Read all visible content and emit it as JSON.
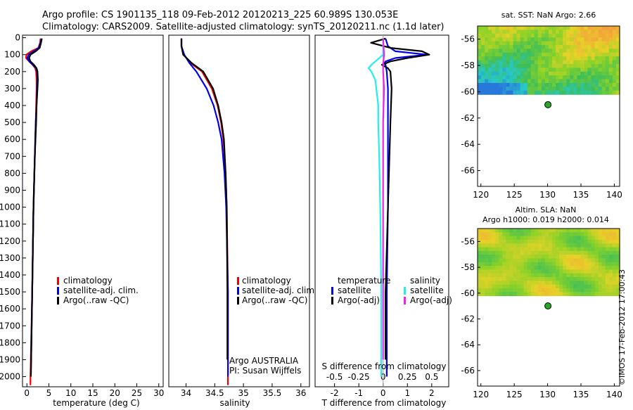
{
  "header": {
    "line1": "Argo profile: CS 1901135_118 09-Feb-2012 20120213_225 60.989S 130.053E",
    "line2": "Climatology: CARS2009. Satellite-adjusted climatology: synTS_20120211.nc (1.1d later)"
  },
  "credit": "©IMOS 17-Feb-2012 17:00:43",
  "colors": {
    "climatology": "#ee0000",
    "satellite": "#0000ee",
    "argo": "#000000",
    "sat_salinity": "#22eeee",
    "argo_salinity": "#ee22ee",
    "float_marker": "#22aa22"
  },
  "chart_data": [
    {
      "id": "temperature",
      "type": "line",
      "xlabel": "temperature (deg C)",
      "ylabel": "",
      "xlim": [
        -1,
        31
      ],
      "ylim": [
        2060,
        -15
      ],
      "xticks": [
        "0",
        "5",
        "10",
        "15",
        "20",
        "25",
        "30"
      ],
      "yticks": [
        "0",
        "100",
        "200",
        "300",
        "400",
        "500",
        "600",
        "700",
        "800",
        "900",
        "1000",
        "1100",
        "1200",
        "1300",
        "1400",
        "1500",
        "1600",
        "1700",
        "1800",
        "1900",
        "2000"
      ],
      "legend": [
        "climatology",
        "satellite-adj. clim.",
        "Argo(..raw -QC)"
      ],
      "series": [
        {
          "name": "climatology",
          "depth": [
            5,
            30,
            60,
            80,
            100,
            120,
            140,
            160,
            180,
            200,
            250,
            300,
            400,
            500,
            700,
            1000,
            1500,
            2000,
            2050
          ],
          "values": [
            3.1,
            3.0,
            2.6,
            1.0,
            -0.1,
            -0.2,
            0.5,
            1.3,
            1.9,
            2.1,
            2.2,
            2.2,
            2.1,
            2.0,
            1.8,
            1.5,
            1.2,
            0.8,
            0.8
          ]
        },
        {
          "name": "satellite-adj. clim.",
          "depth": [
            5,
            30,
            60,
            80,
            100,
            120,
            140,
            160,
            180,
            200,
            250,
            300,
            400,
            500,
            700,
            1000,
            1500,
            2000
          ],
          "values": [
            3.3,
            3.1,
            2.7,
            1.6,
            0.4,
            0.1,
            0.5,
            1.4,
            2.1,
            2.3,
            2.4,
            2.3,
            2.2,
            2.0,
            1.8,
            1.5,
            1.2,
            0.9
          ]
        },
        {
          "name": "Argo(..raw -QC)",
          "depth": [
            5,
            30,
            60,
            80,
            100,
            120,
            140,
            160,
            180,
            200,
            250,
            300,
            400,
            500,
            700,
            1000,
            1500,
            2000
          ],
          "values": [
            3.4,
            3.2,
            2.9,
            2.0,
            0.8,
            0.5,
            0.8,
            1.6,
            2.2,
            2.4,
            2.5,
            2.4,
            2.2,
            2.1,
            1.8,
            1.5,
            1.2,
            0.9
          ]
        }
      ]
    },
    {
      "id": "salinity",
      "type": "line",
      "xlabel": "salinity",
      "xlim": [
        33.7,
        36.15
      ],
      "ylim": [
        2060,
        -15
      ],
      "xticks": [
        "34",
        "34.5",
        "35",
        "35.5",
        "36"
      ],
      "legend": [
        "climatology",
        "satellite-adj. clim.",
        "Argo(..raw -QC)"
      ],
      "annotation": [
        "Argo AUSTRALIA",
        "PI: Susan Wijffels"
      ],
      "series": [
        {
          "name": "climatology",
          "depth": [
            5,
            50,
            100,
            150,
            200,
            300,
            400,
            500,
            600,
            800,
            1000,
            1500,
            2000,
            2050
          ],
          "values": [
            33.92,
            33.92,
            33.96,
            34.08,
            34.28,
            34.45,
            34.55,
            34.61,
            34.65,
            34.69,
            34.71,
            34.73,
            34.73,
            34.73
          ]
        },
        {
          "name": "satellite-adj. clim.",
          "depth": [
            5,
            50,
            100,
            150,
            200,
            300,
            400,
            500,
            600,
            800,
            1000,
            1500,
            2000
          ],
          "values": [
            33.92,
            33.92,
            33.97,
            34.06,
            34.18,
            34.36,
            34.48,
            34.56,
            34.62,
            34.67,
            34.7,
            34.73,
            34.73
          ]
        },
        {
          "name": "Argo(..raw -QC)",
          "depth": [
            5,
            50,
            100,
            150,
            200,
            300,
            400,
            500,
            600,
            800,
            1000,
            1500,
            1900
          ],
          "values": [
            33.92,
            33.92,
            33.95,
            34.1,
            34.3,
            34.47,
            34.56,
            34.62,
            34.66,
            34.69,
            34.71,
            34.72,
            34.72
          ]
        }
      ]
    },
    {
      "id": "differences",
      "type": "line",
      "xlabel": "T difference from climatology",
      "xlabel_top": "S difference from climatology",
      "xlim": [
        -2.8,
        2.7
      ],
      "ylim": [
        2060,
        -15
      ],
      "xticks": [
        "-2",
        "-1",
        "0",
        "1",
        "2"
      ],
      "sticks": [
        "-0.5",
        "-0.25",
        "0",
        "0.25",
        "0.5"
      ],
      "legend_titles": [
        "temperature",
        "salinity"
      ],
      "legend": [
        "satellite",
        "Argo(-adj)",
        "satellite",
        "Argo(-adj)"
      ],
      "series": [
        {
          "name": "temperature satellite",
          "depth": [
            5,
            50,
            80,
            100,
            120,
            140,
            150,
            160,
            200,
            300,
            500,
            1000,
            1500,
            2000
          ],
          "values": [
            0.1,
            0.2,
            0.5,
            1.8,
            0.5,
            0.1,
            0.05,
            0.1,
            0.15,
            0.2,
            0.2,
            0.2,
            0.15,
            0.15
          ]
        },
        {
          "name": "temperature Argo(-adj)",
          "depth": [
            5,
            30,
            60,
            80,
            100,
            120,
            140,
            160,
            180,
            200,
            300,
            500,
            1000,
            1500,
            1900
          ],
          "values": [
            0.1,
            -0.5,
            0.3,
            1.6,
            1.9,
            1.0,
            0.3,
            -0.05,
            0.2,
            0.3,
            0.35,
            0.3,
            0.2,
            0.1,
            0.1
          ]
        },
        {
          "name": "salinity satellite",
          "depth": [
            5,
            100,
            160,
            180,
            200,
            250,
            300,
            400,
            500,
            700,
            1000,
            1500,
            2000
          ],
          "values": [
            0.0,
            0.0,
            -0.12,
            -0.15,
            -0.12,
            -0.08,
            -0.07,
            -0.05,
            -0.05,
            -0.04,
            -0.03,
            -0.02,
            -0.02
          ]
        },
        {
          "name": "salinity Argo(-adj)",
          "depth": [
            5,
            100,
            160,
            200,
            300,
            500,
            1000,
            1500,
            1900
          ],
          "values": [
            0.0,
            0.01,
            0.0,
            0.0,
            0.01,
            0.0,
            0.0,
            0.0,
            0.0
          ]
        }
      ]
    },
    {
      "id": "sst_map",
      "type": "heatmap",
      "title": "sat. SST: NaN Argo: 2.66",
      "xlim": [
        119.5,
        140.8
      ],
      "ylim": [
        -67.2,
        -55
      ],
      "xticks": [
        "120",
        "125",
        "130",
        "135",
        "140"
      ],
      "yticks": [
        "-56",
        "-58",
        "-60",
        "-62",
        "-64",
        "-66"
      ],
      "data_lat_range": [
        -60.2,
        -55
      ],
      "float": {
        "lon": 130.053,
        "lat": -60.989
      }
    },
    {
      "id": "sla_map",
      "type": "heatmap",
      "title": "Altim. SLA: NaN",
      "subtitle": "Argo h1000: 0.019 h2000: 0.014",
      "xlim": [
        119.5,
        140.8
      ],
      "ylim": [
        -67.2,
        -55
      ],
      "xticks": [
        "120",
        "125",
        "130",
        "135",
        "140"
      ],
      "yticks": [
        "-56",
        "-58",
        "-60",
        "-62",
        "-64",
        "-66"
      ],
      "data_lat_range": [
        -60.2,
        -55
      ],
      "float": {
        "lon": 130.053,
        "lat": -60.989
      }
    }
  ]
}
